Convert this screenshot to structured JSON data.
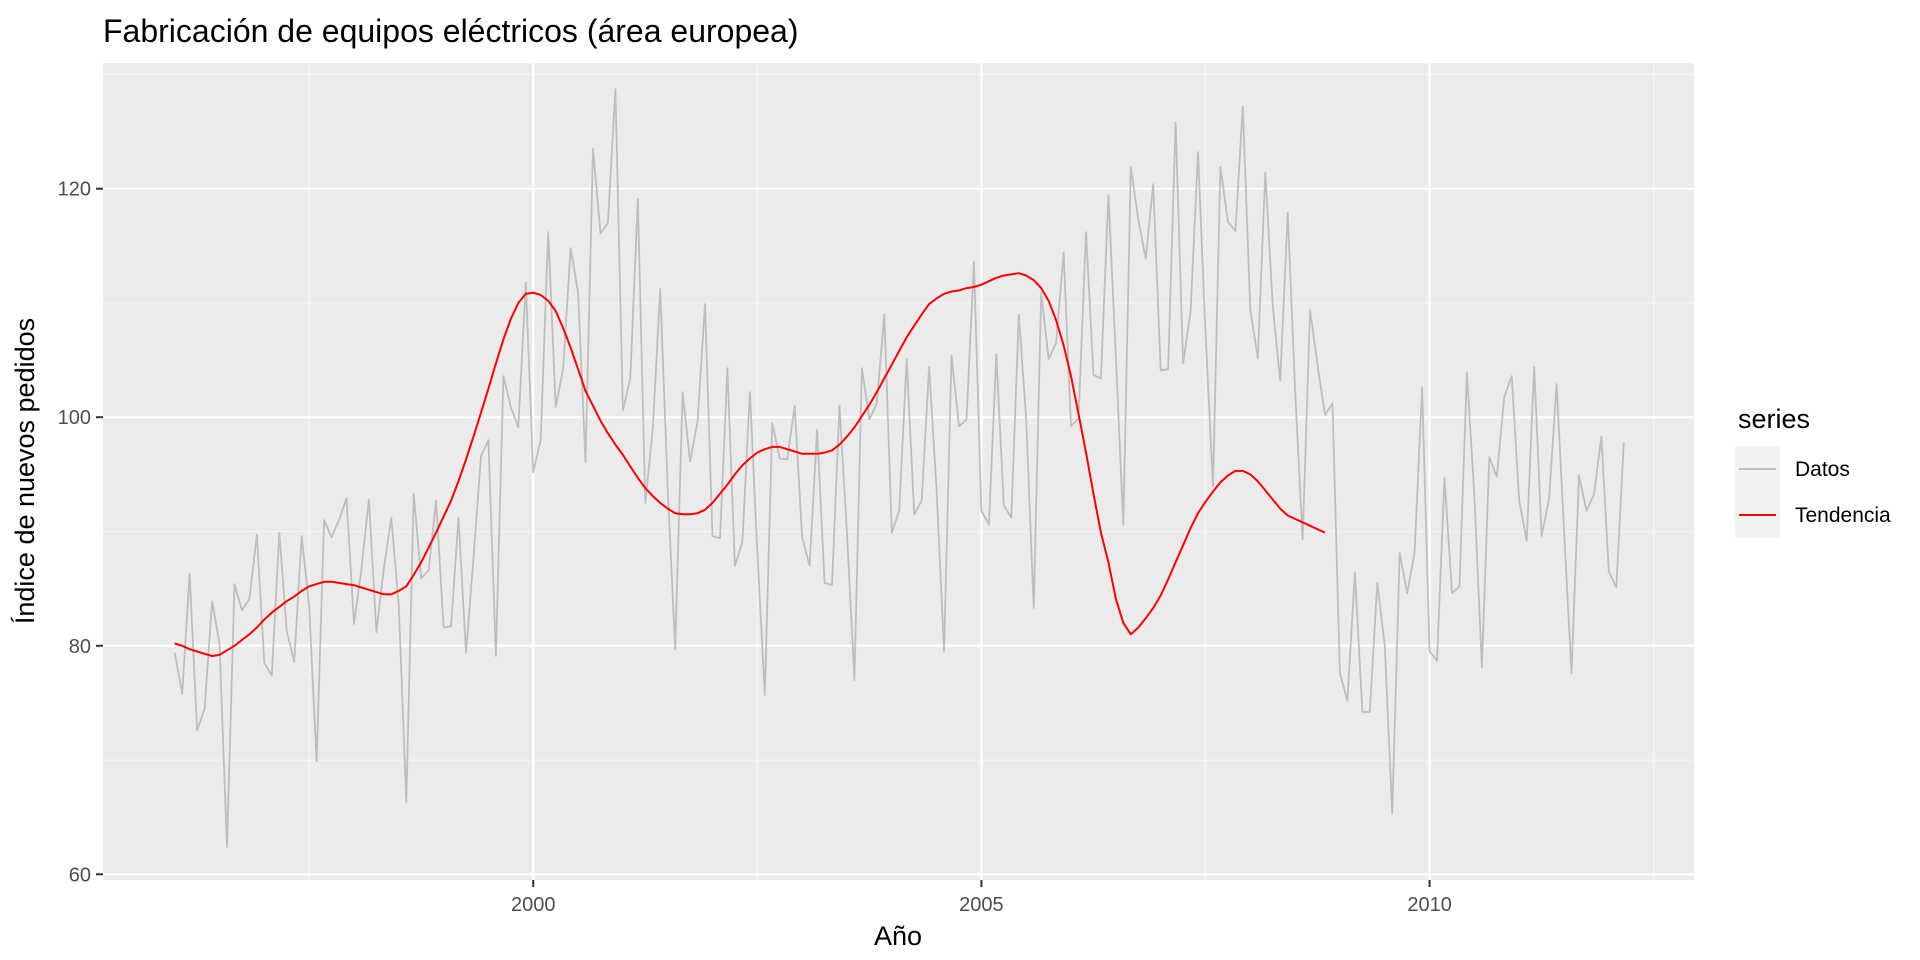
{
  "chart_data": {
    "type": "line",
    "title": "Fabricación de equipos eléctricos (área europea)",
    "xlabel": "Año",
    "ylabel": "Índice de nuevos pedidos",
    "xlim": [
      1995.2,
      2012.95
    ],
    "ylim": [
      59.5,
      131
    ],
    "x_ticks": [
      2000,
      2005,
      2010
    ],
    "x_minor_ticks": [
      1997.5,
      2002.5,
      2007.5,
      2012.5
    ],
    "y_ticks": [
      60,
      80,
      100,
      120
    ],
    "y_minor_ticks": [
      70,
      90,
      110,
      130
    ],
    "grid": true,
    "legend_position": "right",
    "legend_title": "series",
    "series": [
      {
        "name": "Datos",
        "color": "#bebebe",
        "x_start": 1996.0,
        "x_step": 0.0833333,
        "values": [
          79.4,
          75.8,
          86.3,
          72.6,
          74.5,
          83.9,
          80.2,
          62.4,
          85.4,
          83.1,
          84.1,
          89.7,
          78.5,
          77.4,
          89.9,
          81.3,
          78.6,
          89.6,
          83.4,
          69.9,
          91.0,
          89.5,
          91.0,
          92.9,
          81.9,
          86.7,
          92.8,
          81.2,
          86.8,
          91.2,
          83.5,
          66.3,
          93.3,
          85.9,
          86.6,
          92.7,
          81.6,
          81.7,
          91.2,
          79.4,
          87.7,
          96.6,
          98.0,
          79.1,
          103.6,
          100.9,
          99.1,
          111.8,
          95.2,
          98.0,
          116.2,
          100.9,
          104.2,
          114.8,
          110.9,
          96.1,
          123.5,
          116.1,
          117.0,
          128.7,
          100.6,
          103.4,
          119.1,
          92.5,
          99.0,
          111.2,
          93.8,
          79.7,
          102.2,
          96.1,
          99.7,
          109.9,
          89.6,
          89.4,
          104.3,
          87.0,
          89.1,
          102.2,
          88.3,
          75.7,
          99.5,
          96.4,
          96.3,
          101.0,
          89.5,
          87.0,
          98.9,
          85.5,
          85.3,
          101.0,
          89.8,
          77.0,
          104.3,
          99.8,
          101.2,
          109.0,
          89.9,
          91.8,
          105.1,
          91.5,
          92.7,
          104.4,
          93.6,
          79.5,
          105.4,
          99.2,
          99.8,
          113.6,
          91.8,
          90.6,
          105.5,
          92.3,
          91.2,
          109.0,
          99.8,
          83.3,
          110.9,
          105.1,
          106.5,
          114.4,
          99.2,
          99.9,
          116.2,
          103.7,
          103.4,
          119.4,
          105.2,
          90.6,
          121.9,
          117.3,
          113.9,
          120.4,
          104.1,
          104.2,
          125.8,
          104.7,
          109.3,
          123.2,
          107.4,
          94.0,
          121.9,
          117.1,
          116.3,
          127.2,
          109.4,
          105.2,
          121.4,
          109.8,
          103.2,
          117.9,
          102.4,
          89.3,
          109.4,
          104.6,
          100.2,
          101.2,
          77.6,
          75.2,
          86.4,
          74.2,
          74.2,
          85.5,
          80.0,
          65.3,
          88.1,
          84.6,
          88.2,
          102.6,
          79.5,
          78.7,
          94.7,
          84.6,
          85.2,
          103.9,
          93.1,
          78.1,
          96.5,
          94.8,
          101.8,
          103.6,
          92.7,
          89.2,
          104.4,
          89.6,
          92.9,
          102.9,
          90.2,
          77.6,
          94.9,
          91.8,
          93.2,
          98.3,
          86.5,
          85.1,
          97.8
        ]
      },
      {
        "name": "Tendencia",
        "color": "#ff0000",
        "x_start": 1996.0,
        "x_step": 0.0833333,
        "values": [
          80.2,
          80.0,
          79.7,
          79.5,
          79.3,
          79.1,
          79.2,
          79.6,
          80.0,
          80.5,
          81.0,
          81.6,
          82.3,
          82.9,
          83.4,
          83.9,
          84.3,
          84.8,
          85.2,
          85.4,
          85.6,
          85.6,
          85.5,
          85.4,
          85.3,
          85.1,
          84.9,
          84.7,
          84.5,
          84.5,
          84.8,
          85.2,
          86.2,
          87.3,
          88.6,
          89.9,
          91.3,
          92.7,
          94.4,
          96.3,
          98.3,
          100.4,
          102.5,
          104.7,
          106.8,
          108.6,
          110.0,
          110.8,
          110.9,
          110.7,
          110.2,
          109.3,
          107.8,
          106.1,
          104.2,
          102.3,
          101.0,
          99.7,
          98.6,
          97.6,
          96.7,
          95.7,
          94.7,
          93.8,
          93.1,
          92.5,
          92.0,
          91.6,
          91.5,
          91.5,
          91.6,
          91.9,
          92.5,
          93.3,
          94.1,
          95.0,
          95.8,
          96.4,
          96.9,
          97.2,
          97.4,
          97.4,
          97.2,
          97.0,
          96.8,
          96.8,
          96.8,
          96.9,
          97.1,
          97.6,
          98.3,
          99.1,
          100.1,
          101.1,
          102.2,
          103.4,
          104.6,
          105.8,
          107.0,
          108.0,
          109.0,
          109.9,
          110.4,
          110.8,
          111.0,
          111.1,
          111.3,
          111.4,
          111.6,
          111.9,
          112.2,
          112.4,
          112.5,
          112.6,
          112.4,
          112.0,
          111.3,
          110.2,
          108.5,
          106.3,
          103.6,
          100.3,
          96.9,
          93.3,
          89.9,
          87.3,
          84.1,
          82.0,
          81.0,
          81.6,
          82.4,
          83.3,
          84.4,
          85.8,
          87.3,
          88.8,
          90.3,
          91.6,
          92.6,
          93.5,
          94.3,
          94.9,
          95.3,
          95.3,
          95.0,
          94.4,
          93.6,
          92.8,
          92.0,
          91.4,
          91.1,
          90.8,
          90.5,
          90.2,
          89.9
        ]
      }
    ]
  }
}
